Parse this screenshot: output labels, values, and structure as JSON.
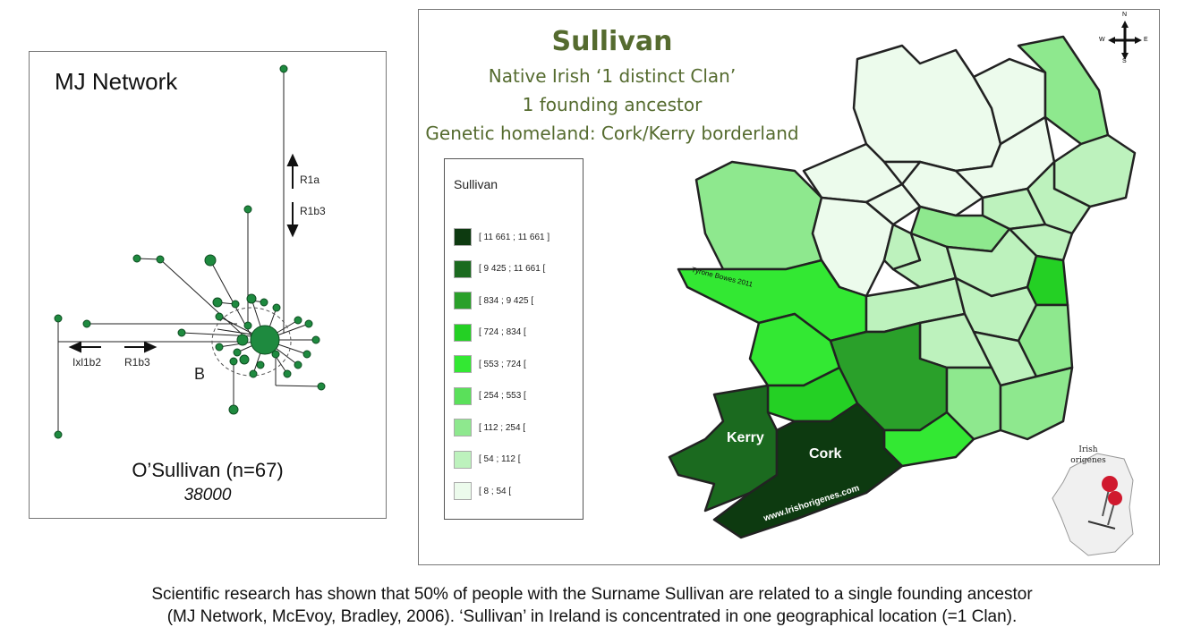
{
  "network": {
    "title": "MJ Network",
    "arrows": {
      "r1a": "R1a",
      "r1b3_vertical": "R1b3",
      "ixl1b2": "Ixl1b2",
      "r1b3_horizontal": "R1b3"
    },
    "cluster_label": "B",
    "caption": "O’Sullivan (n=67)",
    "subcaption": "38000",
    "node_color": "#1e8a3f"
  },
  "map": {
    "title": "Sullivan",
    "subtitle_1": "Native Irish ‘1 distinct Clan’",
    "subtitle_2": "1 founding ancestor",
    "subtitle_3": "Genetic homeland: Cork/Kerry borderland",
    "title_color": "#556b2f",
    "compass": {
      "n": "N",
      "s": "S",
      "e": "E",
      "w": "W"
    },
    "county_labels": {
      "kerry": "Kerry",
      "cork": "Cork"
    },
    "watermark_1": "Tyrone Bowes 2011",
    "watermark_2": "www.Irishorigenes.com",
    "logo_text": "Irish origenes",
    "legend": {
      "title": "Sullivan",
      "items": [
        {
          "label": "[ 11 661 ; 11 661 ]",
          "color": "#0d3a10"
        },
        {
          "label": "[ 9 425 ; 11 661 [",
          "color": "#1b6a1f"
        },
        {
          "label": "[ 834 ; 9 425 [",
          "color": "#2aa02a"
        },
        {
          "label": "[ 724 ; 834 [",
          "color": "#24d024"
        },
        {
          "label": "[ 553 ; 724 [",
          "color": "#33e833"
        },
        {
          "label": "[ 254 ; 553 [",
          "color": "#5ae05a"
        },
        {
          "label": "[ 112 ; 254 [",
          "color": "#8ee88e"
        },
        {
          "label": "[ 54 ; 112 [",
          "color": "#bdf2bd"
        },
        {
          "label": "[ 8 ; 54 [",
          "color": "#ecfbec"
        }
      ]
    }
  },
  "footer": {
    "line_1": "Scientific research has shown that 50% of people with the Surname Sullivan are related to a single founding ancestor",
    "line_2": "(MJ Network, McEvoy, Bradley, 2006). ‘Sullivan’ in Ireland is concentrated in one geographical location (=1 Clan)."
  }
}
